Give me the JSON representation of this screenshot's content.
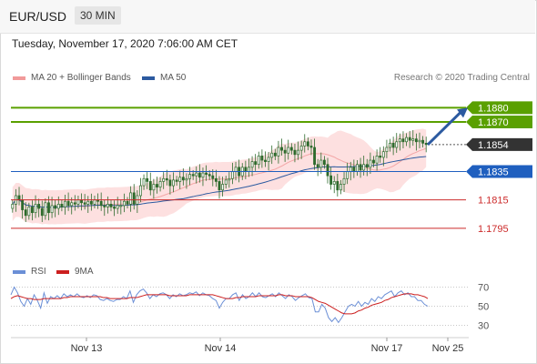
{
  "header": {
    "pair": "EUR/USD",
    "timeframe": "30 MIN"
  },
  "datetime": "Tuesday, November 17, 2020 7:06:00 AM CET",
  "legend_main": [
    {
      "label": "MA 20 + Bollinger Bands",
      "color": "#f19a9a"
    },
    {
      "label": "MA 50",
      "color": "#2c5aa0"
    }
  ],
  "credit": "Research © 2020 Trading Central",
  "legend_rsi": [
    {
      "label": "RSI",
      "color": "#6b8fd6"
    },
    {
      "label": "9MA",
      "color": "#cc1f1f"
    }
  ],
  "colors": {
    "resistance": "#5aa000",
    "current": "#333333",
    "pivot": "#1f5fbf",
    "support": "#cc2b2b",
    "bollinger": "#fde0e0",
    "candle": "#2d6b2d"
  },
  "chart_data": {
    "type": "candlestick",
    "ylim": [
      1.1775,
      1.1895
    ],
    "levels": [
      {
        "value": 1.188,
        "label": "1.1880",
        "kind": "resistance"
      },
      {
        "value": 1.187,
        "label": "1.1870",
        "kind": "resistance"
      },
      {
        "value": 1.1854,
        "label": "1.1854",
        "kind": "current"
      },
      {
        "value": 1.1835,
        "label": "1.1835",
        "kind": "pivot"
      },
      {
        "value": 1.1815,
        "label": "1.1815",
        "kind": "support"
      },
      {
        "value": 1.1795,
        "label": "1.1795",
        "kind": "support"
      }
    ],
    "x_ticks": [
      "Nov 13",
      "Nov 14",
      "Nov 17",
      "Nov 25"
    ],
    "close_prices": [
      1.1812,
      1.1818,
      1.1815,
      1.1808,
      1.1804,
      1.181,
      1.1806,
      1.1812,
      1.1809,
      1.1804,
      1.1813,
      1.1806,
      1.1811,
      1.1809,
      1.1812,
      1.181,
      1.1814,
      1.1811,
      1.1813,
      1.1812,
      1.1815,
      1.1813,
      1.1812,
      1.1814,
      1.1812,
      1.1815,
      1.1814,
      1.1811,
      1.181,
      1.1812,
      1.181,
      1.1809,
      1.1811,
      1.1811,
      1.1814,
      1.1812,
      1.182,
      1.1812,
      1.1818,
      1.1825,
      1.183,
      1.1828,
      1.1822,
      1.1826,
      1.1824,
      1.1828,
      1.183,
      1.1829,
      1.1825,
      1.1829,
      1.1828,
      1.1831,
      1.1829,
      1.183,
      1.1833,
      1.1832,
      1.1834,
      1.1831,
      1.1834,
      1.1833,
      1.1832,
      1.183,
      1.1828,
      1.1822,
      1.1826,
      1.1829,
      1.183,
      1.1835,
      1.1838,
      1.1832,
      1.1838,
      1.1835,
      1.1838,
      1.1842,
      1.184,
      1.1846,
      1.1843,
      1.1842,
      1.1845,
      1.1848,
      1.1846,
      1.1852,
      1.185,
      1.1848,
      1.1852,
      1.185,
      1.1847,
      1.185,
      1.1853,
      1.1856,
      1.1853,
      1.1852,
      1.184,
      1.1838,
      1.1843,
      1.184,
      1.1832,
      1.1826,
      1.1828,
      1.1822,
      1.1826,
      1.183,
      1.1835,
      1.1838,
      1.1835,
      1.184,
      1.1836,
      1.184,
      1.1838,
      1.1843,
      1.1841,
      1.1846,
      1.1845,
      1.1849,
      1.1852,
      1.1855,
      1.1852,
      1.1856,
      1.1858,
      1.1856,
      1.1859,
      1.1857,
      1.1858,
      1.1856,
      1.1857,
      1.1855,
      1.1854
    ],
    "rsi": {
      "ylim": [
        20,
        80
      ],
      "ticks": [
        70,
        50,
        30
      ],
      "rsi_values": [
        62,
        70,
        64,
        55,
        50,
        58,
        52,
        62,
        56,
        48,
        64,
        53,
        60,
        58,
        61,
        58,
        63,
        60,
        62,
        60,
        63,
        60,
        59,
        61,
        59,
        62,
        61,
        57,
        56,
        58,
        56,
        55,
        57,
        57,
        60,
        58,
        66,
        54,
        62,
        66,
        68,
        64,
        58,
        62,
        60,
        63,
        64,
        62,
        58,
        62,
        60,
        63,
        61,
        62,
        64,
        63,
        65,
        61,
        64,
        62,
        61,
        58,
        56,
        48,
        54,
        58,
        58,
        62,
        64,
        56,
        62,
        58,
        60,
        64,
        60,
        64,
        60,
        59,
        61,
        63,
        60,
        64,
        61,
        58,
        62,
        60,
        56,
        59,
        61,
        63,
        59,
        58,
        44,
        44,
        52,
        48,
        38,
        34,
        38,
        33,
        38,
        44,
        50,
        52,
        50,
        55,
        50,
        54,
        52,
        58,
        55,
        60,
        58,
        62,
        64,
        66,
        60,
        64,
        66,
        62,
        64,
        60,
        60,
        56,
        56,
        52,
        50
      ],
      "ma_values": [
        58,
        60,
        61,
        60,
        59,
        58,
        58,
        57,
        57,
        57,
        58,
        58,
        58,
        58,
        58,
        58,
        59,
        59,
        60,
        60,
        60,
        60,
        60,
        60,
        60,
        60,
        60,
        60,
        59,
        59,
        58,
        58,
        58,
        58,
        58,
        58,
        59,
        59,
        59,
        60,
        61,
        62,
        62,
        62,
        62,
        62,
        62,
        62,
        61,
        61,
        61,
        61,
        61,
        61,
        62,
        62,
        62,
        62,
        62,
        62,
        62,
        62,
        61,
        60,
        59,
        58,
        58,
        58,
        59,
        59,
        60,
        60,
        60,
        60,
        60,
        61,
        61,
        61,
        61,
        61,
        61,
        62,
        62,
        61,
        61,
        61,
        60,
        60,
        60,
        60,
        60,
        59,
        57,
        55,
        54,
        53,
        51,
        49,
        47,
        45,
        43,
        42,
        42,
        42,
        43,
        45,
        46,
        48,
        49,
        51,
        52,
        53,
        54,
        56,
        57,
        59,
        60,
        61,
        62,
        63,
        63,
        63,
        62,
        62,
        61,
        60,
        58
      ]
    }
  }
}
